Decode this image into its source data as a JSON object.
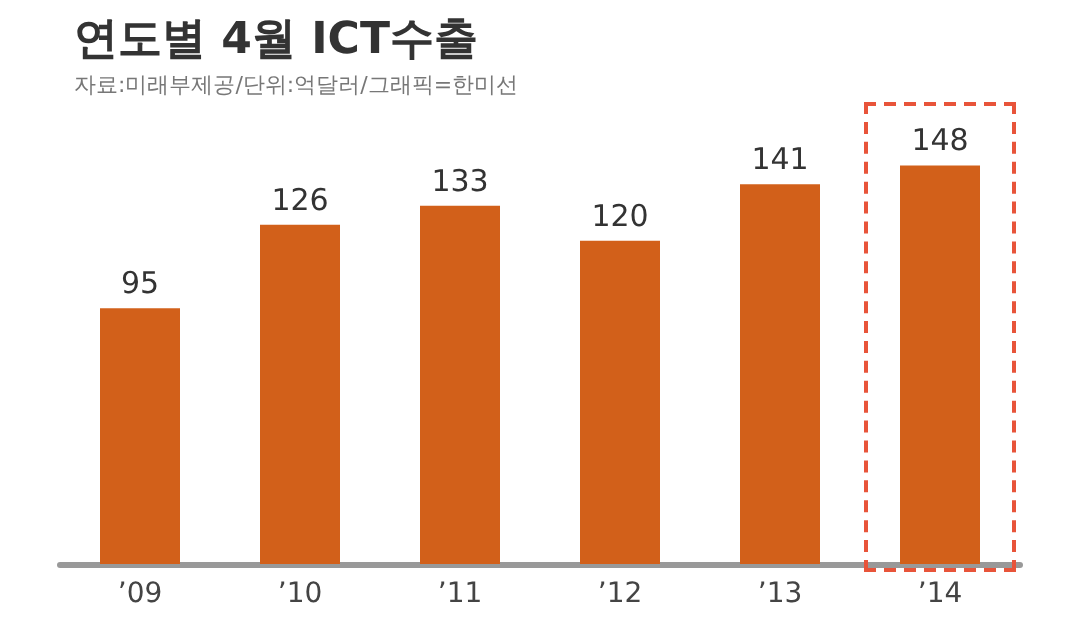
{
  "chart_data": {
    "type": "bar",
    "title": "연도별 4월 ICT수출",
    "subtitle": "자료:미래부제공/단위:억달러/그래픽=한미선",
    "categories": [
      "’09",
      "’10",
      "’11",
      "’12",
      "’13",
      "’14"
    ],
    "values": [
      95,
      126,
      133,
      120,
      141,
      148
    ],
    "color": "#d2601a",
    "data_labels": true
  }
}
